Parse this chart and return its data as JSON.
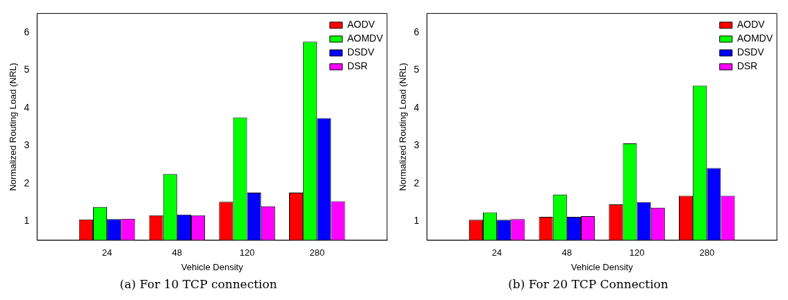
{
  "chart_data": [
    {
      "type": "bar",
      "title": "(a) For 10 TCP connection",
      "xlabel": "Vehicle Density",
      "ylabel": "Normalized Routing Load (NRL)",
      "categories": [
        "24",
        "48",
        "120",
        "280"
      ],
      "ylim": [
        0.5,
        6.5
      ],
      "yticks": [
        1,
        2,
        3,
        4,
        5,
        6
      ],
      "grid": false,
      "legend": "top right",
      "series": [
        {
          "name": "AODV",
          "color": "#ff0000",
          "values": [
            1.05,
            1.16,
            1.52,
            1.76
          ]
        },
        {
          "name": "AOMDV",
          "color": "#00ff00",
          "values": [
            1.38,
            2.25,
            3.75,
            5.75
          ]
        },
        {
          "name": "DSDV",
          "color": "#0000ff",
          "values": [
            1.06,
            1.18,
            1.76,
            3.73
          ]
        },
        {
          "name": "DSR",
          "color": "#ff00ff",
          "values": [
            1.07,
            1.16,
            1.4,
            1.53
          ]
        }
      ]
    },
    {
      "type": "bar",
      "title": "(b) For 20 TCP Connection",
      "xlabel": "Vehicle Density",
      "ylabel": "Normalized Routing Load (NRL)",
      "categories": [
        "24",
        "48",
        "120",
        "280"
      ],
      "ylim": [
        0.5,
        6.5
      ],
      "yticks": [
        1,
        2,
        3,
        4,
        5,
        6
      ],
      "grid": false,
      "legend": "top right",
      "series": [
        {
          "name": "AODV",
          "color": "#ff0000",
          "values": [
            1.04,
            1.12,
            1.45,
            1.68
          ]
        },
        {
          "name": "AOMDV",
          "color": "#00ff00",
          "values": [
            1.24,
            1.71,
            3.06,
            4.59
          ]
        },
        {
          "name": "DSDV",
          "color": "#0000ff",
          "values": [
            1.04,
            1.12,
            1.51,
            2.41
          ]
        },
        {
          "name": "DSR",
          "color": "#ff00ff",
          "values": [
            1.06,
            1.14,
            1.36,
            1.68
          ]
        }
      ]
    }
  ]
}
